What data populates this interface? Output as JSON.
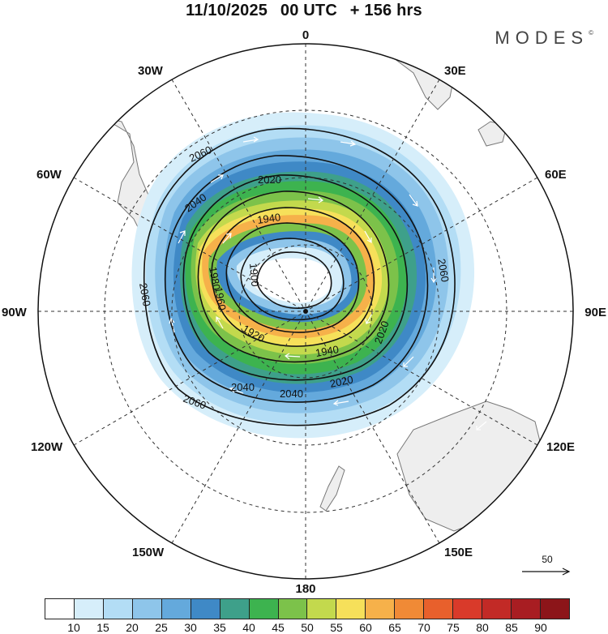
{
  "title": {
    "date": "11/10/2025",
    "time": "00 UTC",
    "lead": "+ 156 hrs"
  },
  "brand": {
    "name": "MODES",
    "mark": "©"
  },
  "map": {
    "projection": "south-polar-stereographic",
    "longitude_labels": {
      "top": "0",
      "bottom": "180",
      "left": "90W",
      "right": "90E",
      "w30": "30W",
      "w60": "60W",
      "w120": "120W",
      "w150": "150W",
      "e30": "30E",
      "e60": "60E",
      "e120": "120E",
      "e150": "150E"
    },
    "contour_labels": [
      "2060",
      "2020",
      "2040",
      "1940",
      "1980",
      "1960",
      "1900",
      "1920",
      "1940",
      "2020",
      "2040",
      "2040",
      "2060",
      "2060",
      "2060",
      "2020"
    ],
    "colors": {
      "land": "#eeeeee",
      "coast": "#777777",
      "grid": "#333333",
      "contour": "#111111",
      "vector": "#ffffff"
    }
  },
  "colorbar": {
    "ticks": [
      "10",
      "15",
      "20",
      "25",
      "30",
      "35",
      "40",
      "45",
      "50",
      "55",
      "60",
      "65",
      "70",
      "75",
      "80",
      "85",
      "90"
    ],
    "colors": [
      "#ffffff",
      "#d6eefa",
      "#b3ddf5",
      "#8ec5ea",
      "#64a9dc",
      "#3f89c6",
      "#3ea08a",
      "#3db34f",
      "#7cc24a",
      "#c3d94d",
      "#f6e05a",
      "#f6b14a",
      "#f08a36",
      "#e8602c",
      "#d93a2a",
      "#c22a26",
      "#a81d22",
      "#8c1519"
    ]
  },
  "reference_vector": {
    "value": "50"
  }
}
